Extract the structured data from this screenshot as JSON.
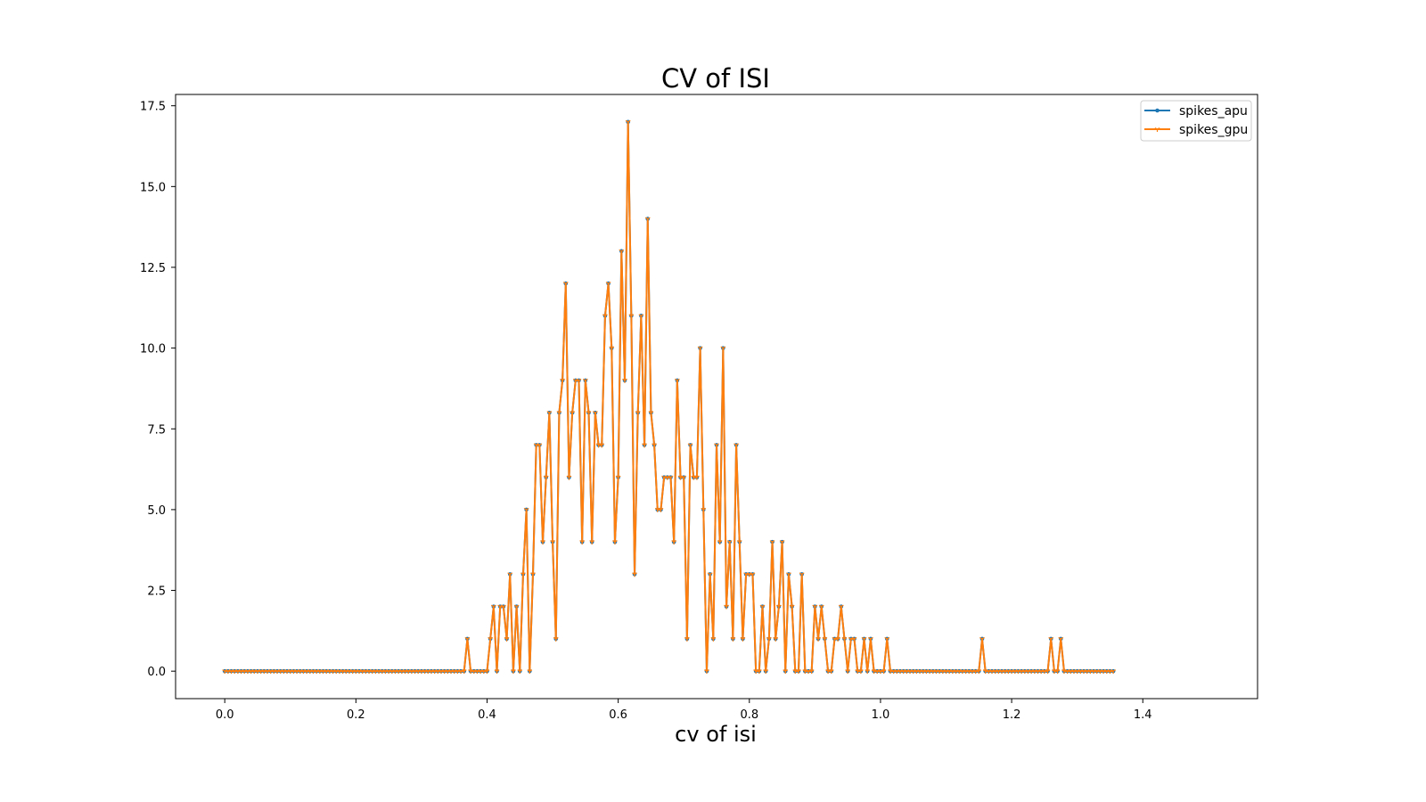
{
  "chart_data": {
    "type": "line",
    "title": "CV of ISI",
    "xlabel": "cv of isi",
    "ylabel": "",
    "xlim": [
      -0.075,
      1.575
    ],
    "ylim": [
      -0.85,
      17.85
    ],
    "xticks": [
      0.0,
      0.2,
      0.4,
      0.6,
      0.8,
      1.0,
      1.2,
      1.4
    ],
    "xtick_labels": [
      "0.0",
      "0.2",
      "0.4",
      "0.6",
      "0.8",
      "1.0",
      "1.2",
      "1.4"
    ],
    "yticks": [
      0.0,
      2.5,
      5.0,
      7.5,
      10.0,
      12.5,
      15.0,
      17.5
    ],
    "ytick_labels": [
      "0.0",
      "2.5",
      "5.0",
      "7.5",
      "10.0",
      "12.5",
      "15.0",
      "17.5"
    ],
    "legend_position": "top-right",
    "grid": false,
    "x_start": 0.0,
    "x_step": 0.005,
    "series": [
      {
        "name": "spikes_apu",
        "color": "#1f77b4",
        "marker": "point",
        "values": [
          0,
          0,
          0,
          0,
          0,
          0,
          0,
          0,
          0,
          0,
          0,
          0,
          0,
          0,
          0,
          0,
          0,
          0,
          0,
          0,
          0,
          0,
          0,
          0,
          0,
          0,
          0,
          0,
          0,
          0,
          0,
          0,
          0,
          0,
          0,
          0,
          0,
          0,
          0,
          0,
          0,
          0,
          0,
          0,
          0,
          0,
          0,
          0,
          0,
          0,
          0,
          0,
          0,
          0,
          0,
          0,
          0,
          0,
          0,
          0,
          0,
          0,
          0,
          0,
          0,
          0,
          0,
          0,
          0,
          0,
          0,
          0,
          0,
          0,
          1,
          0,
          0,
          0,
          0,
          0,
          0,
          1,
          2,
          0,
          2,
          2,
          1,
          3,
          0,
          2,
          0,
          3,
          5,
          0,
          3,
          7,
          7,
          4,
          6,
          8,
          4,
          1,
          8,
          9,
          12,
          6,
          8,
          9,
          9,
          4,
          9,
          8,
          4,
          8,
          7,
          7,
          11,
          12,
          10,
          4,
          6,
          13,
          9,
          17,
          11,
          3,
          8,
          11,
          7,
          14,
          8,
          7,
          5,
          5,
          6,
          6,
          6,
          4,
          9,
          6,
          6,
          1,
          7,
          6,
          6,
          10,
          5,
          0,
          3,
          1,
          7,
          4,
          10,
          2,
          4,
          1,
          7,
          4,
          1,
          3,
          3,
          3,
          0,
          0,
          2,
          0,
          1,
          4,
          1,
          2,
          4,
          0,
          3,
          2,
          0,
          0,
          3,
          0,
          0,
          0,
          2,
          1,
          2,
          1,
          0,
          0,
          1,
          1,
          2,
          1,
          0,
          1,
          1,
          0,
          0,
          1,
          0,
          1,
          0,
          0,
          0,
          0,
          1,
          0,
          0,
          0,
          0,
          0,
          0,
          0,
          0,
          0,
          0,
          0,
          0,
          0,
          0,
          0,
          0,
          0,
          0,
          0,
          0,
          0,
          0,
          0,
          0,
          0,
          0,
          0,
          0,
          1,
          0,
          0,
          0,
          0,
          0,
          0,
          0,
          0,
          0,
          0,
          0,
          0,
          0,
          0,
          0,
          0,
          0,
          0,
          0,
          0,
          1,
          0,
          0,
          1,
          0,
          0,
          0,
          0,
          0,
          0,
          0,
          0,
          0,
          0,
          0,
          0,
          0,
          0,
          0,
          0
        ]
      },
      {
        "name": "spikes_gpu",
        "color": "#ff7f0e",
        "marker": "tri_down",
        "values": [
          0,
          0,
          0,
          0,
          0,
          0,
          0,
          0,
          0,
          0,
          0,
          0,
          0,
          0,
          0,
          0,
          0,
          0,
          0,
          0,
          0,
          0,
          0,
          0,
          0,
          0,
          0,
          0,
          0,
          0,
          0,
          0,
          0,
          0,
          0,
          0,
          0,
          0,
          0,
          0,
          0,
          0,
          0,
          0,
          0,
          0,
          0,
          0,
          0,
          0,
          0,
          0,
          0,
          0,
          0,
          0,
          0,
          0,
          0,
          0,
          0,
          0,
          0,
          0,
          0,
          0,
          0,
          0,
          0,
          0,
          0,
          0,
          0,
          0,
          1,
          0,
          0,
          0,
          0,
          0,
          0,
          1,
          2,
          0,
          2,
          2,
          1,
          3,
          0,
          2,
          0,
          3,
          5,
          0,
          3,
          7,
          7,
          4,
          6,
          8,
          4,
          1,
          8,
          9,
          12,
          6,
          8,
          9,
          9,
          4,
          9,
          8,
          4,
          8,
          7,
          7,
          11,
          12,
          10,
          4,
          6,
          13,
          9,
          17,
          11,
          3,
          8,
          11,
          7,
          14,
          8,
          7,
          5,
          5,
          6,
          6,
          6,
          4,
          9,
          6,
          6,
          1,
          7,
          6,
          6,
          10,
          5,
          0,
          3,
          1,
          7,
          4,
          10,
          2,
          4,
          1,
          7,
          4,
          1,
          3,
          3,
          3,
          0,
          0,
          2,
          0,
          1,
          4,
          1,
          2,
          4,
          0,
          3,
          2,
          0,
          0,
          3,
          0,
          0,
          0,
          2,
          1,
          2,
          1,
          0,
          0,
          1,
          1,
          2,
          1,
          0,
          1,
          1,
          0,
          0,
          1,
          0,
          1,
          0,
          0,
          0,
          0,
          1,
          0,
          0,
          0,
          0,
          0,
          0,
          0,
          0,
          0,
          0,
          0,
          0,
          0,
          0,
          0,
          0,
          0,
          0,
          0,
          0,
          0,
          0,
          0,
          0,
          0,
          0,
          0,
          0,
          1,
          0,
          0,
          0,
          0,
          0,
          0,
          0,
          0,
          0,
          0,
          0,
          0,
          0,
          0,
          0,
          0,
          0,
          0,
          0,
          0,
          1,
          0,
          0,
          1,
          0,
          0,
          0,
          0,
          0,
          0,
          0,
          0,
          0,
          0,
          0,
          0,
          0,
          0,
          0,
          0
        ]
      }
    ]
  }
}
